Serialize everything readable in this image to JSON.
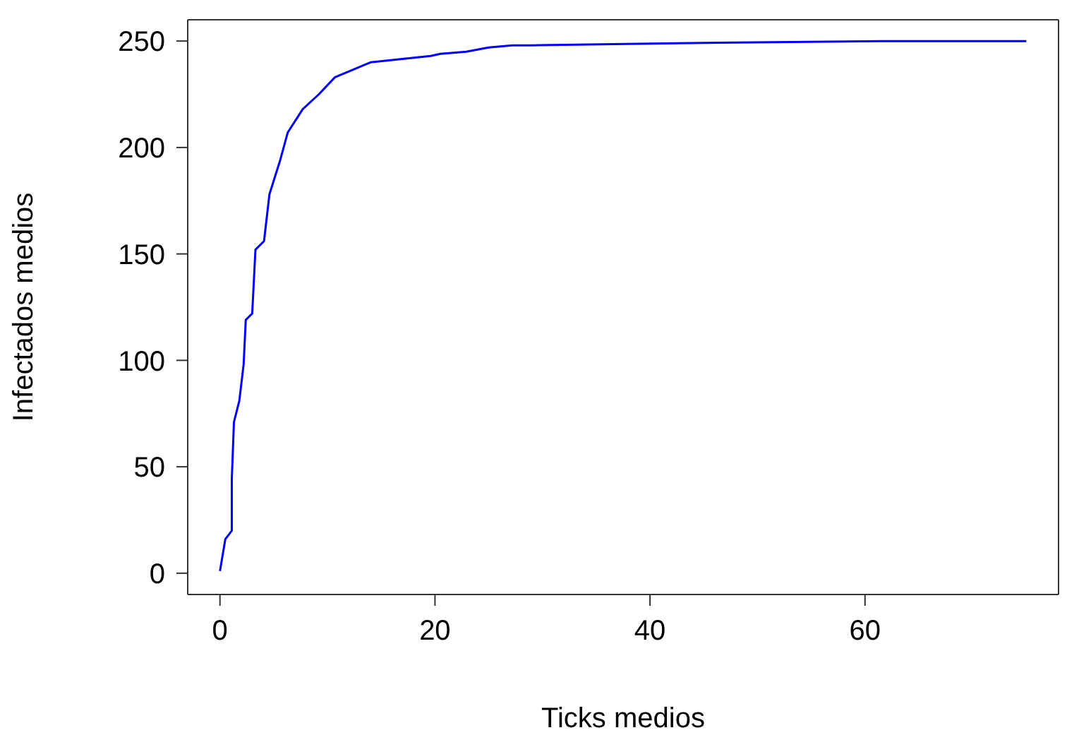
{
  "chart_data": {
    "type": "line",
    "xlabel": "Ticks medios",
    "ylabel": "Infectados medios",
    "x": [
      0,
      0.5,
      1.1,
      1.1,
      1.3,
      1.8,
      2.2,
      2.4,
      3.0,
      3.3,
      4.1,
      4.6,
      5.6,
      6.3,
      7.7,
      9.2,
      10.7,
      14,
      19.6,
      20.5,
      22.9,
      25,
      27.2,
      29,
      42.5,
      61.6,
      75
    ],
    "series": [
      {
        "color": "#0000ff",
        "values": [
          1,
          16,
          20,
          44,
          71,
          81,
          98,
          119,
          122,
          152,
          156,
          178,
          194,
          207,
          218,
          225,
          233,
          240,
          243,
          244,
          245,
          247,
          248,
          248,
          249,
          250,
          250
        ]
      }
    ],
    "xlim": [
      -3,
      78
    ],
    "xticks": [
      0,
      20,
      40,
      60
    ],
    "ylim": [
      -10,
      260
    ],
    "yticks": [
      0,
      50,
      100,
      150,
      200,
      250
    ],
    "grid": false,
    "legend": false,
    "marker": "none",
    "line_style": "solid"
  }
}
